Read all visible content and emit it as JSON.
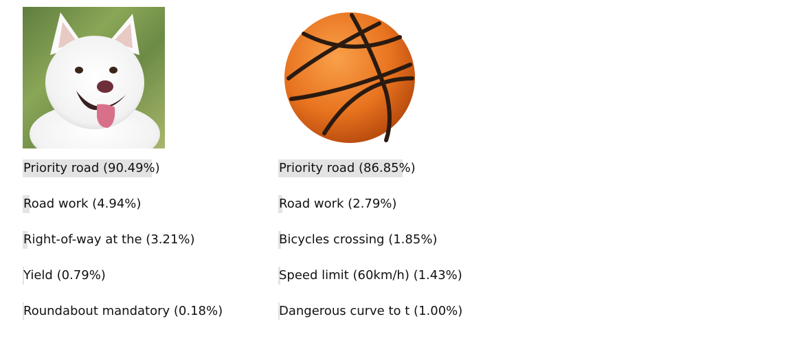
{
  "panels": [
    {
      "image": {
        "subject": "dog-photo"
      },
      "predictions": [
        {
          "name": "Priority road",
          "pct": "90.49%",
          "value": 90.49
        },
        {
          "name": "Road work",
          "pct": "4.94%",
          "value": 4.94
        },
        {
          "name": "Right-of-way at the ",
          "pct": "3.21%",
          "value": 3.21
        },
        {
          "name": "Yield",
          "pct": "0.79%",
          "value": 0.79
        },
        {
          "name": "Roundabout mandatory",
          "pct": "0.18%",
          "value": 0.18
        }
      ]
    },
    {
      "image": {
        "subject": "basketball-photo"
      },
      "predictions": [
        {
          "name": "Priority road",
          "pct": "86.85%",
          "value": 86.85
        },
        {
          "name": "Road work",
          "pct": "2.79%",
          "value": 2.79
        },
        {
          "name": "Bicycles crossing",
          "pct": "1.85%",
          "value": 1.85
        },
        {
          "name": "Speed limit (60km/h)",
          "pct": "1.43%",
          "value": 1.43
        },
        {
          "name": "Dangerous curve to t",
          "pct": "1.00%",
          "value": 1.0
        }
      ]
    }
  ],
  "colors": {
    "bar": "#e3e3e3",
    "ball": "#e8731f",
    "ball_seam": "#2a1a10"
  }
}
